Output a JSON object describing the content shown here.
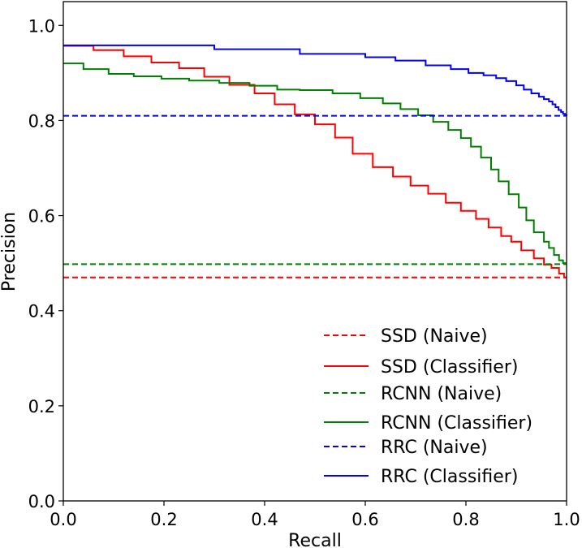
{
  "chart_data": {
    "type": "line",
    "title": "",
    "xlabel": "Recall",
    "ylabel": "Precision",
    "xlim": [
      0.0,
      1.0
    ],
    "ylim": [
      0.0,
      1.05
    ],
    "xticks": [
      "0.0",
      "0.2",
      "0.4",
      "0.6",
      "0.8",
      "1.0"
    ],
    "yticks": [
      "0.0",
      "0.2",
      "0.4",
      "0.6",
      "0.8",
      "1.0"
    ],
    "grid": false,
    "legend_position": "bottom-right",
    "series": [
      {
        "name": "SSD (Naive)",
        "color": "#ff0000",
        "style": "dashed",
        "x": [
          0.0,
          1.0
        ],
        "y": [
          0.47,
          0.47
        ]
      },
      {
        "name": "SSD (Classifier)",
        "color": "#ff0000",
        "style": "step",
        "x": [
          0.0,
          0.06,
          0.12,
          0.175,
          0.23,
          0.28,
          0.33,
          0.38,
          0.42,
          0.46,
          0.5,
          0.54,
          0.575,
          0.615,
          0.655,
          0.69,
          0.725,
          0.76,
          0.79,
          0.82,
          0.845,
          0.87,
          0.89,
          0.91,
          0.935,
          0.955,
          0.97,
          0.985,
          0.995
        ],
        "y": [
          0.957,
          0.948,
          0.935,
          0.922,
          0.91,
          0.892,
          0.875,
          0.857,
          0.834,
          0.813,
          0.792,
          0.764,
          0.73,
          0.702,
          0.682,
          0.663,
          0.646,
          0.627,
          0.61,
          0.593,
          0.575,
          0.557,
          0.545,
          0.527,
          0.51,
          0.497,
          0.49,
          0.478,
          0.47
        ]
      },
      {
        "name": "RCNN (Naive)",
        "color": "#008000",
        "style": "dashed",
        "x": [
          0.0,
          1.0
        ],
        "y": [
          0.498,
          0.498
        ]
      },
      {
        "name": "RCNN (Classifier)",
        "color": "#008000",
        "style": "step",
        "x": [
          0.0,
          0.04,
          0.09,
          0.14,
          0.195,
          0.25,
          0.31,
          0.37,
          0.425,
          0.47,
          0.535,
          0.59,
          0.635,
          0.67,
          0.705,
          0.735,
          0.765,
          0.79,
          0.81,
          0.83,
          0.85,
          0.865,
          0.885,
          0.905,
          0.92,
          0.935,
          0.955,
          0.965,
          0.975,
          0.985,
          0.993
        ],
        "y": [
          0.92,
          0.908,
          0.898,
          0.893,
          0.888,
          0.884,
          0.879,
          0.873,
          0.865,
          0.864,
          0.857,
          0.847,
          0.836,
          0.824,
          0.811,
          0.797,
          0.78,
          0.763,
          0.745,
          0.722,
          0.697,
          0.672,
          0.645,
          0.617,
          0.59,
          0.565,
          0.545,
          0.532,
          0.517,
          0.506,
          0.5
        ]
      },
      {
        "name": "RRC (Naive)",
        "color": "#0000ff",
        "style": "dashed",
        "x": [
          0.0,
          1.0
        ],
        "y": [
          0.81,
          0.81
        ]
      },
      {
        "name": "RRC (Classifier)",
        "color": "#0000ff",
        "style": "step",
        "x": [
          0.0,
          0.3,
          0.47,
          0.6,
          0.66,
          0.72,
          0.77,
          0.805,
          0.835,
          0.86,
          0.88,
          0.9,
          0.915,
          0.93,
          0.945,
          0.955,
          0.965,
          0.972,
          0.978,
          0.984,
          0.989,
          0.993,
          0.997,
          1.0
        ],
        "y": [
          0.958,
          0.95,
          0.94,
          0.933,
          0.926,
          0.916,
          0.908,
          0.9,
          0.895,
          0.889,
          0.883,
          0.874,
          0.865,
          0.857,
          0.85,
          0.845,
          0.84,
          0.834,
          0.828,
          0.822,
          0.818,
          0.814,
          0.811,
          0.81
        ]
      }
    ]
  }
}
